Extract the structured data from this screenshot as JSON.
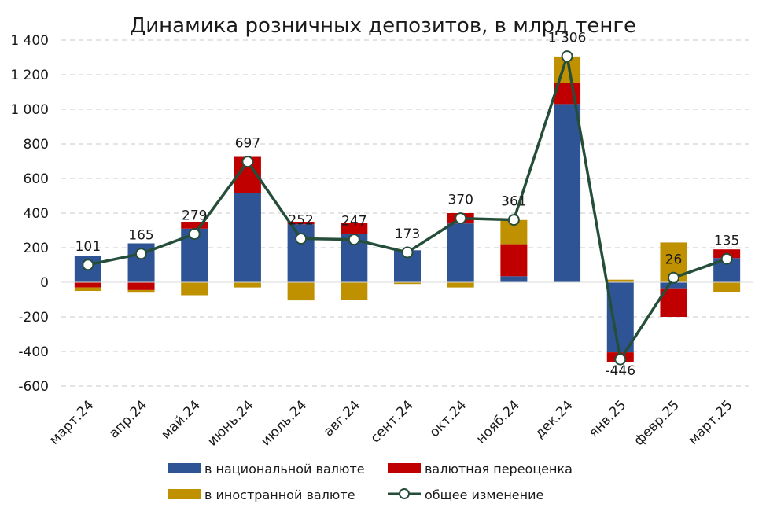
{
  "chart_data": {
    "type": "bar",
    "title": "Динамика розничных депозитов, в млрд тенге",
    "xlabel": "",
    "ylabel": "",
    "ylim": [
      -600,
      1400
    ],
    "yticks": [
      -600,
      -400,
      -200,
      0,
      200,
      400,
      600,
      800,
      1000,
      1200,
      1400
    ],
    "ytick_labels": [
      "-600",
      "-400",
      "-200",
      "0",
      "200",
      "400",
      "600",
      "800",
      "1 000",
      "1 200",
      "1 400"
    ],
    "grid": true,
    "legend_position": "bottom",
    "categories": [
      "март.24",
      "апр.24",
      "май.24",
      "июнь.24",
      "июль.24",
      "авг.24",
      "сент.24",
      "окт.24",
      "нояб.24",
      "дек.24",
      "янв.25",
      "февр.25",
      "март.25"
    ],
    "series": [
      {
        "name": "в национальной валюте",
        "kind": "bar",
        "color": "#2E5496",
        "values": [
          150,
          225,
          310,
          515,
          335,
          280,
          185,
          340,
          35,
          1030,
          -405,
          -35,
          140
        ]
      },
      {
        "name": "валютная переоценка",
        "kind": "bar",
        "color": "#C00000",
        "values": [
          -30,
          -45,
          40,
          210,
          15,
          65,
          0,
          60,
          185,
          120,
          -55,
          -165,
          50
        ]
      },
      {
        "name": "в иностранной валюте",
        "kind": "bar",
        "color": "#BF9000",
        "values": [
          -20,
          -15,
          -75,
          -30,
          -105,
          -100,
          -10,
          -30,
          140,
          155,
          15,
          230,
          -55
        ]
      },
      {
        "name": "общее изменение",
        "kind": "line",
        "color": "#254E3A",
        "values": [
          101,
          165,
          279,
          697,
          252,
          247,
          173,
          370,
          361,
          1306,
          -446,
          26,
          135
        ]
      }
    ],
    "data_labels": [
      "101",
      "165",
      "279",
      "697",
      "252",
      "247",
      "173",
      "370",
      "361",
      "1 306",
      "-446",
      "26",
      "135"
    ]
  }
}
